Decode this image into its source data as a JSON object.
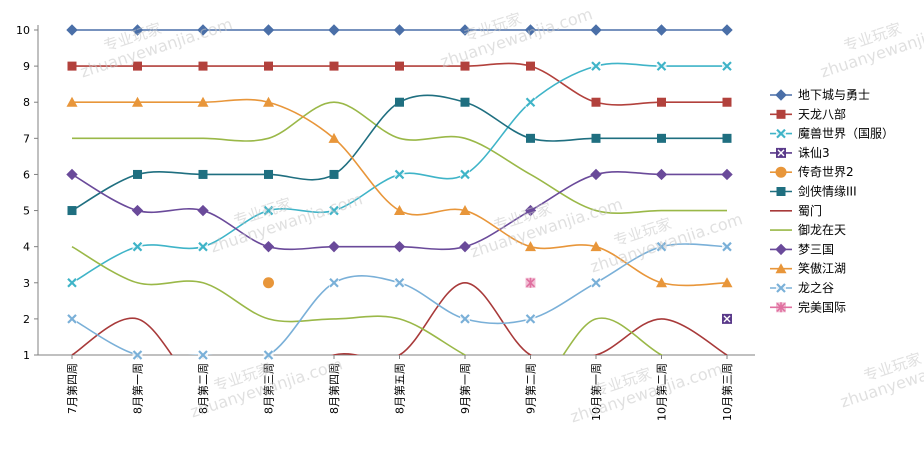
{
  "chart_data": {
    "type": "line",
    "title": "",
    "xlabel": "",
    "ylabel": "",
    "ylim": [
      1,
      10
    ],
    "yticks": [
      1,
      2,
      3,
      4,
      5,
      6,
      7,
      8,
      9,
      10
    ],
    "grid": false,
    "legend_position": "right",
    "categories": [
      "7月第四周",
      "8月第一周",
      "8月第二周",
      "8月第三周",
      "8月第四周",
      "8月第五周",
      "9月第一周",
      "9月第二周",
      "10月第一周",
      "10月第二周",
      "10月第三周"
    ],
    "series": [
      {
        "name": "地下城与勇士",
        "color": "#4a6fa8",
        "marker": "diamond",
        "values": [
          10,
          10,
          10,
          10,
          10,
          10,
          10,
          10,
          10,
          10,
          10
        ]
      },
      {
        "name": "天龙八部",
        "color": "#b2413c",
        "marker": "square",
        "values": [
          9,
          9,
          9,
          9,
          9,
          9,
          9,
          9,
          8,
          8,
          8
        ]
      },
      {
        "name": "魔兽世界（国服）",
        "color": "#3fb4c8",
        "marker": "x",
        "values": [
          3,
          4,
          4,
          5,
          5,
          6,
          6,
          8,
          9,
          9,
          9
        ]
      },
      {
        "name": "诛仙3",
        "color": "#5a3a8a",
        "marker": "x-square",
        "values": [
          null,
          null,
          null,
          null,
          null,
          null,
          null,
          null,
          null,
          null,
          2
        ]
      },
      {
        "name": "传奇世界2",
        "color": "#e8963a",
        "marker": "circle",
        "values": [
          null,
          null,
          null,
          3,
          null,
          null,
          null,
          null,
          null,
          null,
          null
        ]
      },
      {
        "name": "剑侠情缘III",
        "color": "#1f6f80",
        "marker": "square",
        "values": [
          5,
          6,
          6,
          6,
          6,
          8,
          8,
          7,
          7,
          7,
          7
        ]
      },
      {
        "name": "蜀门",
        "color": "#a83a3a",
        "marker": "none",
        "values": [
          1,
          2,
          0,
          0,
          1,
          1,
          3,
          1,
          1,
          2,
          1
        ]
      },
      {
        "name": "御龙在天",
        "color": "#9ab848",
        "marker": "none",
        "values": [
          4,
          3,
          3,
          2,
          2,
          2,
          1,
          0,
          2,
          1,
          0
        ]
      },
      {
        "name": "梦三国",
        "color": "#6a4a9a",
        "marker": "diamond",
        "values": [
          6,
          5,
          5,
          4,
          4,
          4,
          4,
          5,
          6,
          6,
          6
        ]
      },
      {
        "name": "笑傲江湖",
        "color": "#e8963a",
        "marker": "triangle",
        "values": [
          8,
          8,
          8,
          8,
          7,
          5,
          5,
          4,
          4,
          3,
          3
        ]
      },
      {
        "name": "龙之谷",
        "color": "#7ab0d8",
        "marker": "x",
        "values": [
          2,
          1,
          1,
          1,
          3,
          3,
          2,
          2,
          3,
          4,
          4
        ]
      },
      {
        "name": "完美国际",
        "color": "#e070a0",
        "marker": "asterisk",
        "values": [
          null,
          null,
          null,
          null,
          null,
          null,
          null,
          3,
          null,
          null,
          null
        ]
      }
    ],
    "extra_lines": [
      {
        "name": "御龙在天",
        "color": "#9ab848",
        "values": [
          7,
          7,
          7,
          7,
          8,
          7,
          7,
          6,
          5,
          5,
          5
        ]
      }
    ]
  },
  "watermarks": [
    {
      "cn": "专业玩家",
      "en": "zhuanyewanjia.com"
    }
  ]
}
